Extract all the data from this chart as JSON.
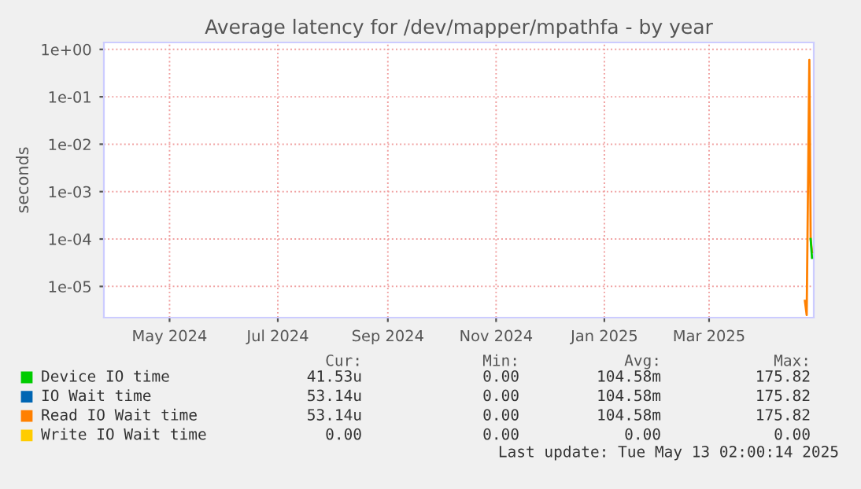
{
  "chart_data": {
    "type": "line",
    "title": "Average latency for /dev/mapper/mpathfa - by year",
    "ylabel": "seconds",
    "x": [
      "2025-05-09T00:00",
      "2025-05-10T00:00",
      "2025-05-11T12:00",
      "2025-05-12T06:00",
      "2025-05-13T00:00"
    ],
    "series": [
      {
        "name": "Device IO time",
        "color": "#00cc00",
        "values": [
          null,
          null,
          null,
          0.0001,
          4e-05
        ]
      },
      {
        "name": "IO Wait time",
        "color": "#0066b3",
        "values": [
          null,
          null,
          null,
          null,
          null
        ]
      },
      {
        "name": "Read IO Wait time",
        "color": "#ff8000",
        "values": [
          5e-06,
          2.5e-06,
          0.6,
          0.0001,
          5.3e-05
        ]
      },
      {
        "name": "Write IO Wait time",
        "color": "#ffcc00",
        "values": [
          null,
          null,
          null,
          null,
          null
        ]
      }
    ],
    "log": "y",
    "ylim": [
      2.2e-06,
      1.4
    ],
    "yticks": [
      {
        "value": 1e-05,
        "label": "1e-05"
      },
      {
        "value": 0.0001,
        "label": "1e-04"
      },
      {
        "value": 0.001,
        "label": "1e-03"
      },
      {
        "value": 0.01,
        "label": "1e-02"
      },
      {
        "value": 0.1,
        "label": "1e-01"
      },
      {
        "value": 1,
        "label": "1e+00"
      }
    ],
    "xlim": [
      "2024-04-09",
      "2025-05-14"
    ],
    "xticks": [
      {
        "value": "2024-05-16",
        "label": "May 2024"
      },
      {
        "value": "2024-07-16",
        "label": "Jul 2024"
      },
      {
        "value": "2024-09-16",
        "label": "Sep 2024"
      },
      {
        "value": "2024-11-16",
        "label": "Nov 2024"
      },
      {
        "value": "2025-01-16",
        "label": "Jan 2025"
      },
      {
        "value": "2025-03-16",
        "label": "Mar 2025"
      }
    ],
    "grid": true,
    "legend": "bottom",
    "annotations": [
      "Cur:",
      "Min:",
      "Avg:",
      "Max:",
      "41.53u",
      "0.00",
      "104.58m",
      "175.82",
      "53.14u",
      "0.00",
      "104.58m",
      "175.82",
      "53.14u",
      "0.00",
      "104.58m",
      "175.82",
      "0.00",
      "0.00",
      "0.00",
      "0.00",
      "Last update: Tue May 13 02:00:14 2025"
    ]
  }
}
